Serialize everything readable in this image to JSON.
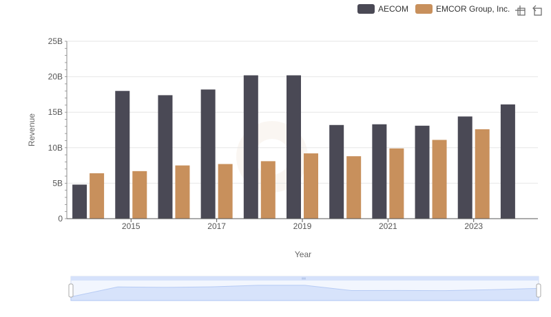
{
  "colors": {
    "aecom": "#4a4955",
    "emcor": "#c8905c",
    "grid": "#e6e6e6",
    "axis": "#555555",
    "zoom_fill": "#d6e2fb",
    "zoom_line": "#a4bdf0"
  },
  "toolbar": {
    "zoom_icon": "zoom-select-icon",
    "restore_icon": "zoom-restore-icon"
  },
  "chart_data": {
    "type": "bar",
    "xlabel": "Year",
    "ylabel": "Revenue",
    "ylim": [
      0,
      25
    ],
    "y_unit": "B",
    "y_ticks": [
      "0",
      "5B",
      "10B",
      "15B",
      "20B",
      "25B"
    ],
    "categories": [
      "2014",
      "2015",
      "2016",
      "2017",
      "2018",
      "2019",
      "2020",
      "2021",
      "2022",
      "2023",
      "2024"
    ],
    "x_tick_labels": [
      "2015",
      "2017",
      "2019",
      "2021",
      "2023"
    ],
    "grid": true,
    "legend_position": "top-right",
    "series": [
      {
        "name": "AECOM",
        "values": [
          4.8,
          18.0,
          17.4,
          18.2,
          20.2,
          20.2,
          13.2,
          13.3,
          13.1,
          14.4,
          16.1
        ]
      },
      {
        "name": "EMCOR Group, Inc.",
        "values": [
          6.4,
          6.7,
          7.5,
          7.7,
          8.1,
          9.2,
          8.8,
          9.9,
          11.1,
          12.6,
          null
        ]
      }
    ]
  }
}
